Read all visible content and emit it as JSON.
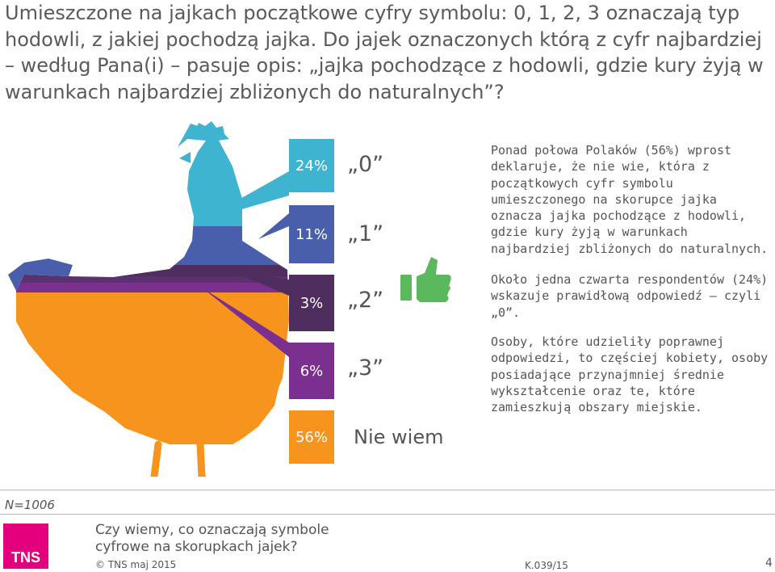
{
  "title": "Umieszczone na jajkach początkowe cyfry symbolu: 0, 1, 2, 3 oznaczają typ hodowli, z jakiej pochodzą jajka. Do jajek oznaczonych którą z cyfr najbardziej – według Pana(i) – pasuje opis: „jajka pochodzące z hodowli, gdzie kury żyją w warunkach najbardziej zbliżonych do naturalnych”?",
  "chart_data": {
    "type": "bar",
    "categories": [
      "„0”",
      "„1”",
      "„2”",
      "„3”",
      "Nie wiem"
    ],
    "values": [
      24,
      11,
      3,
      6,
      56
    ],
    "value_labels": [
      "24%",
      "11%",
      "3%",
      "6%",
      "56%"
    ],
    "unit": "%",
    "colors": [
      "#3fb4d0",
      "#4a5fac",
      "#4f2d5e",
      "#7b2f8f",
      "#f7941d"
    ],
    "highlight": "„0”",
    "highlight_icon": "thumbs-up-icon"
  },
  "comments": [
    "Ponad połowa Polaków (56%) wprost deklaruje, że nie wie, która z początkowych cyfr symbolu umieszczonego na skorupce jajka oznacza jajka pochodzące z hodowli, gdzie kury żyją w warunkach najbardziej zbliżonych do naturalnych.",
    "Około jedna czwarta respondentów (24%) wskazuje prawidłową odpowiedź – czyli „0”.",
    "Osoby, które udzieliły poprawnej odpowiedzi, to częściej kobiety, osoby posiadające przynajmniej średnie wykształcenie oraz te, które zamieszkują obszary miejskie."
  ],
  "footer": {
    "n": "N=1006",
    "logo": "TNS",
    "question": "Czy wiemy, co oznaczają symbole cyfrowe na skorupkach jajek?",
    "copyright": "© TNS maj 2015",
    "code": "K.039/15",
    "page": "4"
  }
}
